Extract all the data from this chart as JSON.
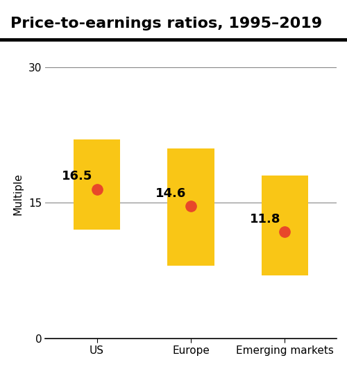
{
  "title": "Price-to-earnings ratios, 1995–2019",
  "ylabel": "Multiple",
  "categories": [
    "US",
    "Europe",
    "Emerging markets"
  ],
  "bar_bottoms": [
    12.0,
    8.0,
    7.0
  ],
  "bar_tops": [
    22.0,
    21.0,
    18.0
  ],
  "dot_values": [
    16.5,
    14.6,
    11.8
  ],
  "bar_color": "#F9C616",
  "dot_color": "#E8472A",
  "yticks": [
    0,
    15,
    30
  ],
  "ymin": 0,
  "ymax": 32,
  "hline_y": 15,
  "dot_label_fontsize": 13,
  "title_fontsize": 16,
  "axis_label_fontsize": 11,
  "tick_fontsize": 11,
  "background_color": "#ffffff",
  "bar_width": 0.5,
  "x_positions": [
    0,
    1,
    2
  ]
}
